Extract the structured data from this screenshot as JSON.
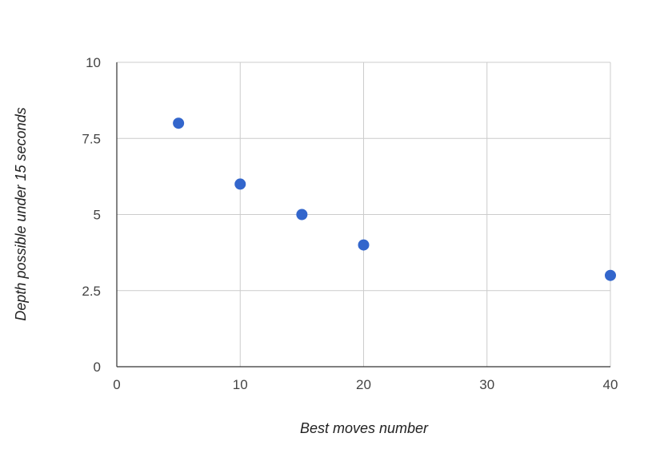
{
  "chart_data": {
    "type": "scatter",
    "title": "",
    "xlabel": "Best moves number",
    "ylabel": "Depth possible under 15 seconds",
    "xlim": [
      0,
      40
    ],
    "ylim": [
      0,
      10
    ],
    "x_ticks": [
      0,
      10,
      20,
      30,
      40
    ],
    "x_tick_labels": [
      "0",
      "10",
      "20",
      "30",
      "40"
    ],
    "y_ticks": [
      0,
      2.5,
      5,
      7.5,
      10
    ],
    "y_tick_labels": [
      "0",
      "2.5",
      "5",
      "7.5",
      "10"
    ],
    "grid": true,
    "legend": "none",
    "series": [
      {
        "color": "#3366cc",
        "points": [
          {
            "x": 5,
            "y": 8
          },
          {
            "x": 10,
            "y": 6
          },
          {
            "x": 15,
            "y": 5
          },
          {
            "x": 20,
            "y": 4
          },
          {
            "x": 40,
            "y": 3
          }
        ]
      }
    ]
  }
}
